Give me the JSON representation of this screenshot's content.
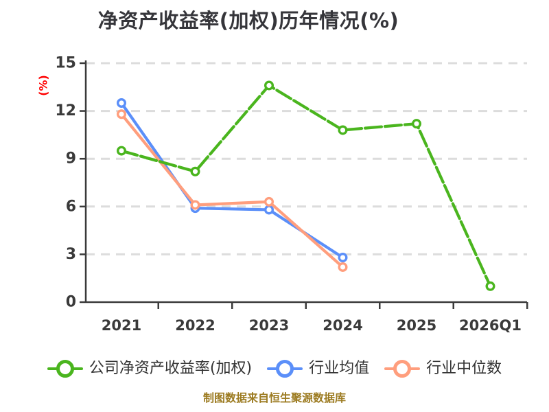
{
  "chart_data": {
    "type": "line",
    "title": "净资产收益率(加权)历年情况(%)",
    "ylabel": "(%)",
    "xlabel": "",
    "categories": [
      "2021",
      "2022",
      "2023",
      "2024",
      "2025",
      "2026Q1"
    ],
    "yticks": [
      0,
      3,
      6,
      9,
      12,
      15
    ],
    "ylim": [
      0,
      15
    ],
    "grid": true,
    "legend_position": "bottom",
    "series": [
      {
        "name": "公司净资产收益率(加权)",
        "color": "#4ab51e",
        "values": [
          9.5,
          8.2,
          13.6,
          10.8,
          11.2,
          1.0
        ]
      },
      {
        "name": "行业均值",
        "color": "#5b8ff9",
        "values": [
          12.5,
          5.9,
          5.8,
          2.8,
          null,
          null
        ]
      },
      {
        "name": "行业中位数",
        "color": "#ff9e7d",
        "values": [
          11.8,
          6.1,
          6.3,
          2.2,
          null,
          null
        ]
      }
    ]
  },
  "footer": {
    "text": "制图数据来自恒生聚源数据库"
  },
  "colors": {
    "title": "#35353a",
    "axis": "#3a3a3a",
    "tick_label": "#3a3a3a",
    "grid": "#dcdcdc",
    "ylabel": "#ff0000",
    "footer": "#9c7b21",
    "legend_text": "#333333",
    "marker_fill": "#ffffff",
    "background": "#ffffff"
  }
}
